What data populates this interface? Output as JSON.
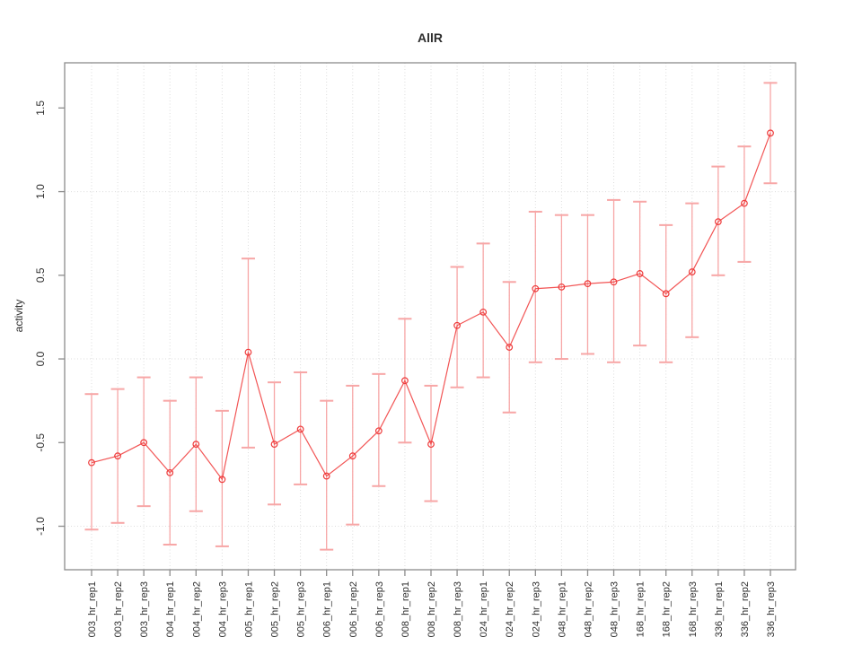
{
  "window": {
    "background": "#ffffff"
  },
  "chart_data": {
    "type": "scatter",
    "title": "AllR",
    "xlabel": "",
    "ylabel": "activity",
    "legend_position": "none",
    "categories": [
      "003_hr_rep1",
      "003_hr_rep2",
      "003_hr_rep3",
      "004_hr_rep1",
      "004_hr_rep2",
      "004_hr_rep3",
      "005_hr_rep1",
      "005_hr_rep2",
      "005_hr_rep3",
      "006_hr_rep1",
      "006_hr_rep2",
      "006_hr_rep3",
      "008_hr_rep1",
      "008_hr_rep2",
      "008_hr_rep3",
      "024_hr_rep1",
      "024_hr_rep2",
      "024_hr_rep3",
      "048_hr_rep1",
      "048_hr_rep2",
      "048_hr_rep3",
      "168_hr_rep1",
      "168_hr_rep2",
      "168_hr_rep3",
      "336_hr_rep1",
      "336_hr_rep2",
      "336_hr_rep3"
    ],
    "series": [
      {
        "name": "activity",
        "marker": "open-circle",
        "connected": true,
        "values": [
          -0.62,
          -0.58,
          -0.5,
          -0.68,
          -0.51,
          -0.72,
          0.04,
          -0.51,
          -0.42,
          -0.7,
          -0.58,
          -0.43,
          -0.13,
          -0.51,
          0.2,
          0.28,
          0.07,
          0.42,
          0.43,
          0.45,
          0.46,
          0.51,
          0.39,
          0.52,
          0.82,
          0.93,
          1.35
        ],
        "error_low": [
          -1.02,
          -0.98,
          -0.88,
          -1.11,
          -0.91,
          -1.12,
          -0.53,
          -0.87,
          -0.75,
          -1.14,
          -0.99,
          -0.76,
          -0.5,
          -0.85,
          -0.17,
          -0.11,
          -0.32,
          -0.02,
          0.0,
          0.03,
          -0.02,
          0.08,
          -0.02,
          0.13,
          0.5,
          0.58,
          1.05
        ],
        "error_high": [
          -0.21,
          -0.18,
          -0.11,
          -0.25,
          -0.11,
          -0.31,
          0.6,
          -0.14,
          -0.08,
          -0.25,
          -0.16,
          -0.09,
          0.24,
          -0.16,
          0.55,
          0.69,
          0.46,
          0.88,
          0.86,
          0.86,
          0.95,
          0.94,
          0.8,
          0.93,
          1.15,
          1.27,
          1.65
        ]
      }
    ],
    "yticks": [
      -1.0,
      -0.5,
      0.0,
      0.5,
      1.0,
      1.5
    ],
    "ylim": [
      -1.26,
      1.77
    ],
    "grid": {
      "vertical": "at-every-category",
      "horizontal_at": [
        -1.0,
        0.0,
        1.0
      ],
      "style": "dotted"
    },
    "colors": {
      "series_line": "#f25555",
      "marker_stroke": "#ee3b3b",
      "error_bar": "#f7a6a6",
      "grid": "#dcdcdc",
      "axis": "#8c8c8c",
      "tick_label": "#2e2e2e",
      "title": "#000000"
    }
  }
}
